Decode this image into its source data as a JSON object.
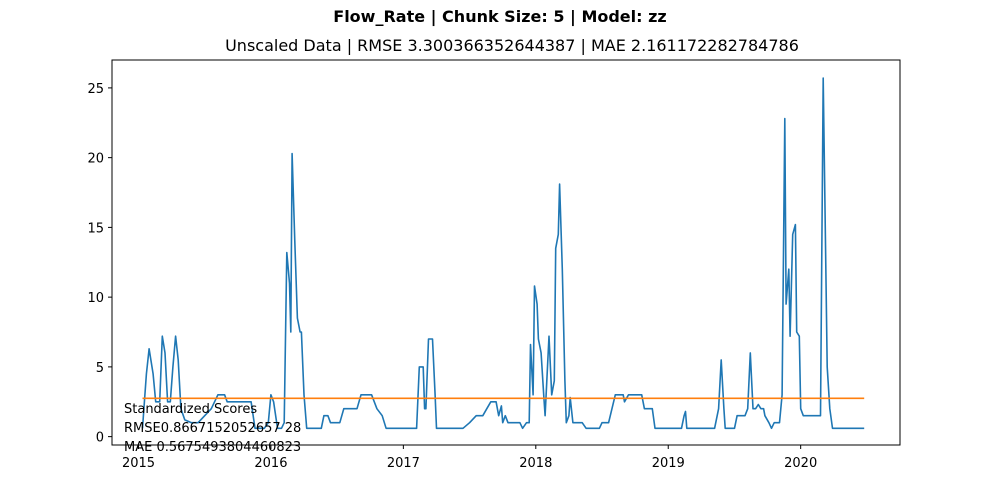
{
  "figure": {
    "suptitle": "Flow_Rate | Chunk Size: 5 | Model: zz"
  },
  "chart_data": {
    "type": "line",
    "title": "Unscaled Data | RMSE 3.300366352644387 | MAE 2.161172282784786",
    "xlabel": "",
    "ylabel": "",
    "xlim": [
      2014.8,
      2020.75
    ],
    "ylim": [
      -0.6,
      27
    ],
    "x_ticks": [
      "2015",
      "2016",
      "2017",
      "2018",
      "2019",
      "2020"
    ],
    "y_ticks": [
      "0",
      "5",
      "10",
      "15",
      "20",
      "25"
    ],
    "grid": false,
    "series": [
      {
        "color": "#1f77b4",
        "points": [
          [
            2015.03,
            0.6
          ],
          [
            2015.06,
            4.5
          ],
          [
            2015.08,
            6.3
          ],
          [
            2015.11,
            4.5
          ],
          [
            2015.13,
            2.5
          ],
          [
            2015.16,
            2.5
          ],
          [
            2015.18,
            7.2
          ],
          [
            2015.2,
            6.0
          ],
          [
            2015.22,
            2.5
          ],
          [
            2015.24,
            2.5
          ],
          [
            2015.26,
            5.0
          ],
          [
            2015.28,
            7.2
          ],
          [
            2015.3,
            5.5
          ],
          [
            2015.32,
            2.0
          ],
          [
            2015.35,
            1.2
          ],
          [
            2015.4,
            1.0
          ],
          [
            2015.45,
            1.0
          ],
          [
            2015.5,
            1.5
          ],
          [
            2015.55,
            2.0
          ],
          [
            2015.6,
            3.0
          ],
          [
            2015.65,
            3.0
          ],
          [
            2015.67,
            2.5
          ],
          [
            2015.7,
            2.5
          ],
          [
            2015.78,
            2.5
          ],
          [
            2015.85,
            2.5
          ],
          [
            2015.88,
            0.6
          ],
          [
            2015.95,
            0.6
          ],
          [
            2015.98,
            1.0
          ],
          [
            2016.0,
            3.0
          ],
          [
            2016.02,
            2.5
          ],
          [
            2016.05,
            0.6
          ],
          [
            2016.08,
            0.6
          ],
          [
            2016.1,
            1.0
          ],
          [
            2016.12,
            13.2
          ],
          [
            2016.14,
            11.0
          ],
          [
            2016.15,
            7.5
          ],
          [
            2016.16,
            20.3
          ],
          [
            2016.18,
            14.0
          ],
          [
            2016.2,
            8.5
          ],
          [
            2016.22,
            7.5
          ],
          [
            2016.23,
            7.5
          ],
          [
            2016.25,
            3.0
          ],
          [
            2016.27,
            0.6
          ],
          [
            2016.35,
            0.6
          ],
          [
            2016.38,
            0.6
          ],
          [
            2016.4,
            1.5
          ],
          [
            2016.43,
            1.5
          ],
          [
            2016.45,
            1.0
          ],
          [
            2016.52,
            1.0
          ],
          [
            2016.55,
            2.0
          ],
          [
            2016.65,
            2.0
          ],
          [
            2016.68,
            3.0
          ],
          [
            2016.76,
            3.0
          ],
          [
            2016.8,
            2.0
          ],
          [
            2016.84,
            1.5
          ],
          [
            2016.87,
            0.6
          ],
          [
            2017.1,
            0.6
          ],
          [
            2017.12,
            5.0
          ],
          [
            2017.15,
            5.0
          ],
          [
            2017.16,
            2.0
          ],
          [
            2017.17,
            2.0
          ],
          [
            2017.19,
            7.0
          ],
          [
            2017.22,
            7.0
          ],
          [
            2017.24,
            3.0
          ],
          [
            2017.25,
            0.6
          ],
          [
            2017.45,
            0.6
          ],
          [
            2017.5,
            1.0
          ],
          [
            2017.55,
            1.5
          ],
          [
            2017.6,
            1.5
          ],
          [
            2017.63,
            2.0
          ],
          [
            2017.66,
            2.5
          ],
          [
            2017.7,
            2.5
          ],
          [
            2017.72,
            1.5
          ],
          [
            2017.74,
            2.2
          ],
          [
            2017.75,
            1.0
          ],
          [
            2017.77,
            1.5
          ],
          [
            2017.79,
            1.0
          ],
          [
            2017.88,
            1.0
          ],
          [
            2017.9,
            0.6
          ],
          [
            2017.93,
            1.0
          ],
          [
            2017.95,
            1.0
          ],
          [
            2017.96,
            6.6
          ],
          [
            2017.98,
            3.0
          ],
          [
            2017.99,
            10.8
          ],
          [
            2018.01,
            9.5
          ],
          [
            2018.02,
            7.0
          ],
          [
            2018.04,
            6.0
          ],
          [
            2018.06,
            3.0
          ],
          [
            2018.07,
            1.5
          ],
          [
            2018.1,
            7.2
          ],
          [
            2018.12,
            3.0
          ],
          [
            2018.14,
            4.0
          ],
          [
            2018.15,
            13.5
          ],
          [
            2018.17,
            14.5
          ],
          [
            2018.18,
            18.1
          ],
          [
            2018.2,
            12.0
          ],
          [
            2018.22,
            4.0
          ],
          [
            2018.23,
            1.0
          ],
          [
            2018.25,
            1.5
          ],
          [
            2018.26,
            2.8
          ],
          [
            2018.28,
            1.0
          ],
          [
            2018.35,
            1.0
          ],
          [
            2018.38,
            0.6
          ],
          [
            2018.48,
            0.6
          ],
          [
            2018.5,
            1.0
          ],
          [
            2018.55,
            1.0
          ],
          [
            2018.6,
            3.0
          ],
          [
            2018.66,
            3.0
          ],
          [
            2018.67,
            2.5
          ],
          [
            2018.7,
            3.0
          ],
          [
            2018.8,
            3.0
          ],
          [
            2018.82,
            2.0
          ],
          [
            2018.88,
            2.0
          ],
          [
            2018.9,
            0.6
          ],
          [
            2019.1,
            0.6
          ],
          [
            2019.12,
            1.5
          ],
          [
            2019.13,
            1.8
          ],
          [
            2019.14,
            0.6
          ],
          [
            2019.35,
            0.6
          ],
          [
            2019.38,
            2.0
          ],
          [
            2019.4,
            5.5
          ],
          [
            2019.42,
            2.0
          ],
          [
            2019.43,
            0.6
          ],
          [
            2019.5,
            0.6
          ],
          [
            2019.52,
            1.5
          ],
          [
            2019.58,
            1.5
          ],
          [
            2019.6,
            2.0
          ],
          [
            2019.62,
            6.0
          ],
          [
            2019.64,
            2.0
          ],
          [
            2019.66,
            2.0
          ],
          [
            2019.68,
            2.3
          ],
          [
            2019.7,
            2.0
          ],
          [
            2019.72,
            2.0
          ],
          [
            2019.73,
            1.5
          ],
          [
            2019.76,
            1.0
          ],
          [
            2019.78,
            0.6
          ],
          [
            2019.8,
            1.0
          ],
          [
            2019.84,
            1.0
          ],
          [
            2019.86,
            3.0
          ],
          [
            2019.88,
            22.8
          ],
          [
            2019.89,
            9.5
          ],
          [
            2019.91,
            12.0
          ],
          [
            2019.92,
            7.2
          ],
          [
            2019.94,
            14.5
          ],
          [
            2019.96,
            15.2
          ],
          [
            2019.97,
            7.5
          ],
          [
            2019.99,
            7.2
          ],
          [
            2020.0,
            2.0
          ],
          [
            2020.02,
            1.5
          ],
          [
            2020.15,
            1.5
          ],
          [
            2020.17,
            25.7
          ],
          [
            2020.2,
            5.0
          ],
          [
            2020.22,
            2.0
          ],
          [
            2020.24,
            0.6
          ],
          [
            2020.48,
            0.6
          ]
        ]
      },
      {
        "color": "#ff7f0e",
        "points": [
          [
            2015.03,
            2.75
          ],
          [
            2020.48,
            2.75
          ]
        ]
      }
    ],
    "annotation": {
      "lines": [
        "Standardized Scores",
        "RMSE0.8667152052657 28",
        "MAE 0.5675493804460823"
      ]
    }
  }
}
